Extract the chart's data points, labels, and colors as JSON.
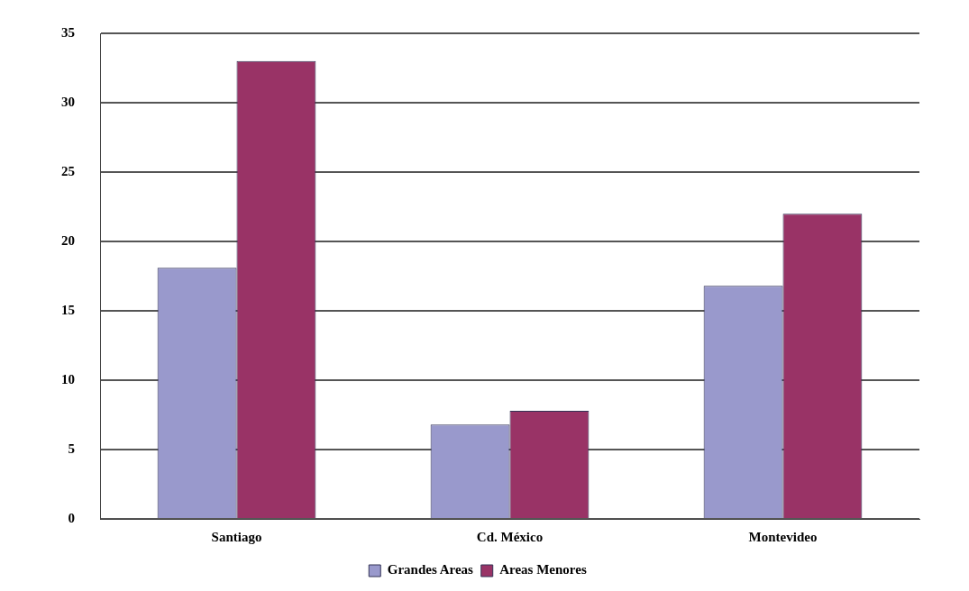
{
  "chart_data": {
    "type": "bar",
    "categories": [
      "Santiago",
      "Cd. México",
      "Montevideo"
    ],
    "series": [
      {
        "name": "Grandes Areas",
        "color": "#9999cc",
        "values": [
          18.1,
          6.8,
          16.8
        ]
      },
      {
        "name": "Areas Menores",
        "color": "#993366",
        "values": [
          33.0,
          7.8,
          22.0
        ]
      }
    ],
    "ylim": [
      0,
      35
    ],
    "yticks": [
      0,
      5,
      10,
      15,
      20,
      25,
      30,
      35
    ],
    "grid": "y",
    "legend": "bottom"
  }
}
